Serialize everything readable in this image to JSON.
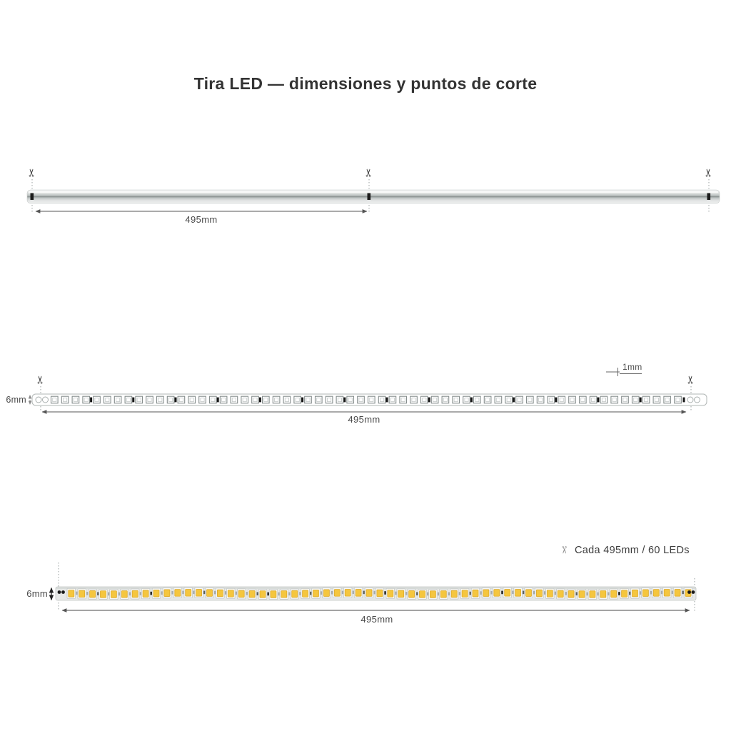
{
  "title": "Tira LED — dimensiones y puntos de corte",
  "icons": {
    "scissors": "✂"
  },
  "side_view": {
    "length_label": "495mm"
  },
  "top_view": {
    "height_label": "6mm",
    "pitch_label": "1mm",
    "length_label": "495mm"
  },
  "photo_view": {
    "height_label": "6mm",
    "cut_note": "Cada 495mm / 60 LEDs",
    "length_label": "495mm"
  },
  "colors": {
    "led_yellow": "#f5c63e",
    "dimension_line": "#555555",
    "text": "#3c3c3c"
  }
}
